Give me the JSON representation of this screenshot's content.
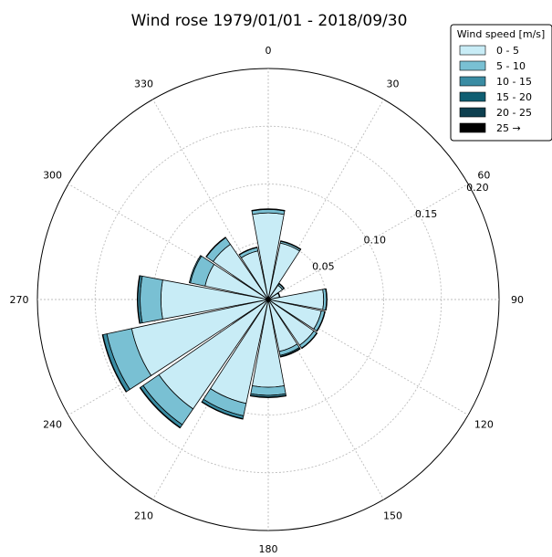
{
  "chart_data": {
    "type": "polar-stacked-bar",
    "title": "Wind rose   1979/01/01 - 2018/09/30",
    "direction_labels": [
      "0",
      "30",
      "60",
      "90",
      "120",
      "150",
      "180",
      "210",
      "240",
      "270",
      "300",
      "330"
    ],
    "radial_ticks": [
      {
        "value": 0.05,
        "label": "0.05"
      },
      {
        "value": 0.1,
        "label": "0.10"
      },
      {
        "value": 0.15,
        "label": "0.15"
      },
      {
        "value": 0.2,
        "label": "0.20"
      }
    ],
    "radial_max": 0.2,
    "grid": true,
    "legend": {
      "title": "Wind speed [m/s]",
      "position": "top-right",
      "entries": [
        {
          "label": "0 -  5",
          "color": "#c8ecf6"
        },
        {
          "label": "5 - 10",
          "color": "#79c0d3"
        },
        {
          "label": "10 - 15",
          "color": "#3a8ca3"
        },
        {
          "label": "15 - 20",
          "color": "#0f5e72"
        },
        {
          "label": "20 - 25",
          "color": "#0d3f4f"
        },
        {
          "label": "25 →",
          "color": "#000000"
        }
      ]
    },
    "sectors": [
      {
        "direction": 0,
        "values": [
          0.075,
          0.003,
          0.0005,
          0,
          0,
          0
        ]
      },
      {
        "direction": 22.5,
        "values": [
          0.05,
          0.0015,
          0.0005,
          0,
          0,
          0
        ]
      },
      {
        "direction": 45,
        "values": [
          0.015,
          0.0015,
          0.0005,
          0,
          0,
          0
        ]
      },
      {
        "direction": 67.5,
        "values": [
          0.01,
          0.0005,
          0,
          0,
          0,
          0
        ]
      },
      {
        "direction": 90,
        "values": [
          0.048,
          0.0025,
          0.0005,
          0,
          0,
          0
        ]
      },
      {
        "direction": 112.5,
        "values": [
          0.047,
          0.003,
          0.0005,
          0,
          0,
          0
        ]
      },
      {
        "direction": 135,
        "values": [
          0.048,
          0.003,
          0.0005,
          0,
          0,
          0
        ]
      },
      {
        "direction": 157.5,
        "values": [
          0.046,
          0.0035,
          0.001,
          0.0005,
          0,
          0
        ]
      },
      {
        "direction": 180,
        "values": [
          0.076,
          0.007,
          0.0015,
          0.0005,
          0,
          0
        ]
      },
      {
        "direction": 202.5,
        "values": [
          0.092,
          0.011,
          0.0025,
          0.0005,
          0,
          0
        ]
      },
      {
        "direction": 225,
        "values": [
          0.115,
          0.0165,
          0.003,
          0.0005,
          0,
          0
        ]
      },
      {
        "direction": 247.5,
        "values": [
          0.121,
          0.022,
          0.0035,
          0.0005,
          0,
          0
        ]
      },
      {
        "direction": 270,
        "values": [
          0.093,
          0.018,
          0.002,
          0.0005,
          0,
          0
        ]
      },
      {
        "direction": 292.5,
        "values": [
          0.056,
          0.013,
          0.001,
          0,
          0,
          0
        ]
      },
      {
        "direction": 315,
        "values": [
          0.058,
          0.007,
          0.0005,
          0,
          0,
          0
        ]
      },
      {
        "direction": 337.5,
        "values": [
          0.043,
          0.003,
          0.0005,
          0,
          0,
          0
        ]
      }
    ]
  }
}
